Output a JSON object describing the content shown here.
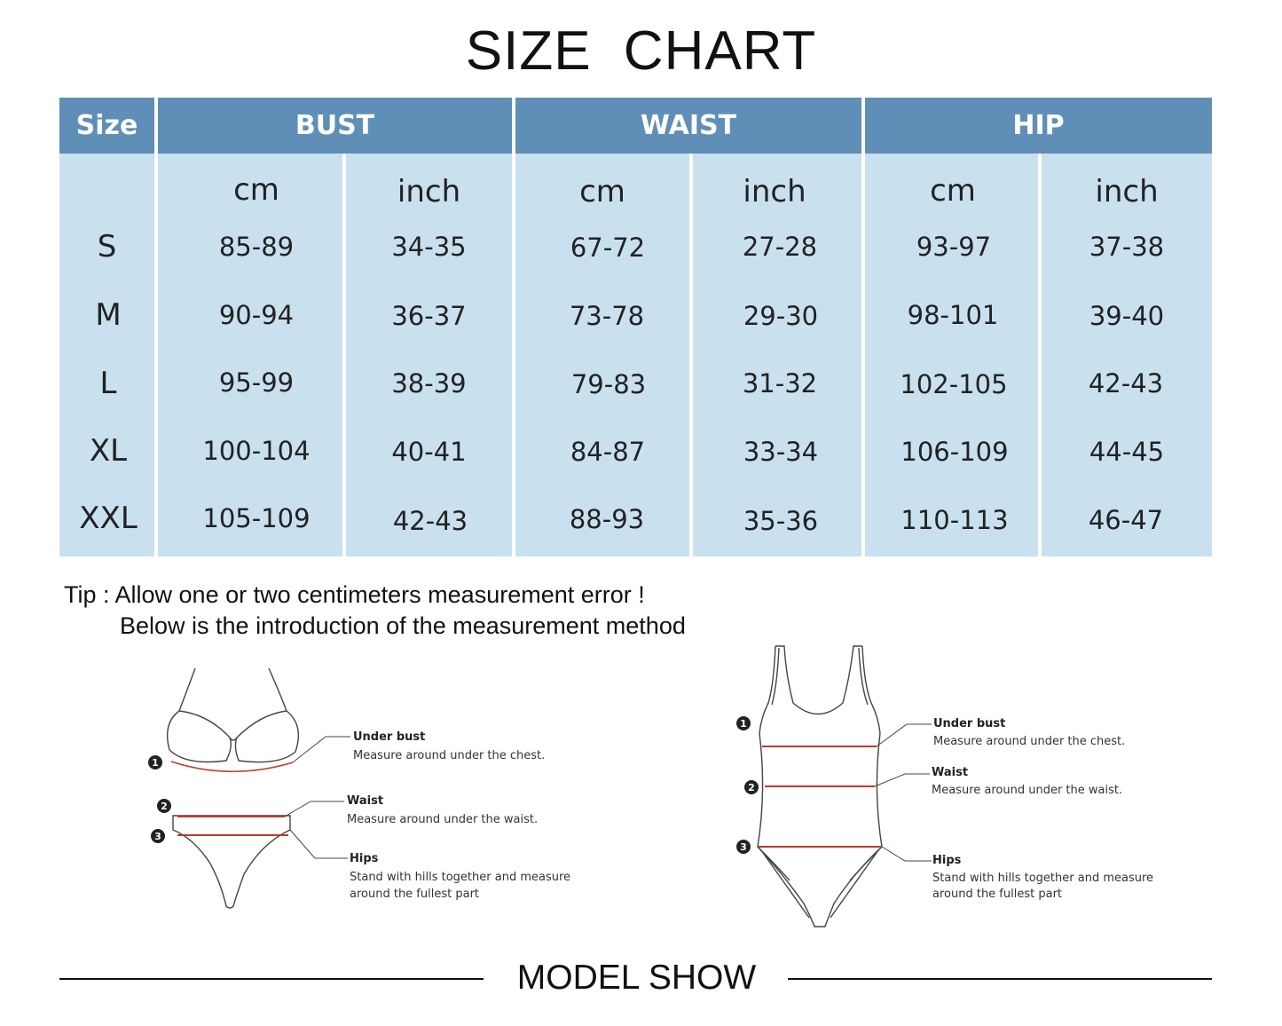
{
  "title": "SIZE  CHART",
  "table": {
    "headers": {
      "size": "Size",
      "bust": "BUST",
      "waist": "WAIST",
      "hip": "HIP"
    },
    "units": [
      "cm",
      "inch",
      "cm",
      "inch",
      "cm",
      "inch"
    ],
    "rows": [
      {
        "size": "S",
        "values": [
          "85-89",
          "34-35",
          "67-72",
          "27-28",
          "93-97",
          "37-38"
        ]
      },
      {
        "size": "M",
        "values": [
          "90-94",
          "36-37",
          "73-78",
          "29-30",
          "98-101",
          "39-40"
        ]
      },
      {
        "size": "L",
        "values": [
          "95-99",
          "38-39",
          "79-83",
          "31-32",
          "102-105",
          "42-43"
        ]
      },
      {
        "size": "XL",
        "values": [
          "100-104",
          "40-41",
          "84-87",
          "33-34",
          "106-109",
          "44-45"
        ]
      },
      {
        "size": "XXL",
        "values": [
          "105-109",
          "42-43",
          "88-93",
          "35-36",
          "110-113",
          "46-47"
        ]
      }
    ]
  },
  "tip": {
    "line1": "Tip : Allow one or two centimeters measurement error !",
    "line2": "Below is the introduction of the measurement method"
  },
  "bikini": {
    "markers": [
      "1",
      "2",
      "3"
    ],
    "under_bust": {
      "title": "Under bust",
      "desc": "Measure around under the chest."
    },
    "waist": {
      "title": "Waist",
      "desc": "Measure around under the waist."
    },
    "hips": {
      "title": "Hips",
      "desc1": "Stand with hills together and measure",
      "desc2": "around  the fullest part"
    }
  },
  "onepiece": {
    "markers": [
      "1",
      "2",
      "3"
    ],
    "under_bust": {
      "title": "Under bust",
      "desc": "Measure around under the chest."
    },
    "waist": {
      "title": "Waist",
      "desc": "Measure around under the waist."
    },
    "hips": {
      "title": "Hips",
      "desc1": "Stand with hills together and measure",
      "desc2": "around  the fullest part"
    }
  },
  "footer": "MODEL SHOW",
  "colors": {
    "header": "#5f8fb6",
    "body": "#c9e0ef",
    "measure_line": "#c0392b"
  }
}
